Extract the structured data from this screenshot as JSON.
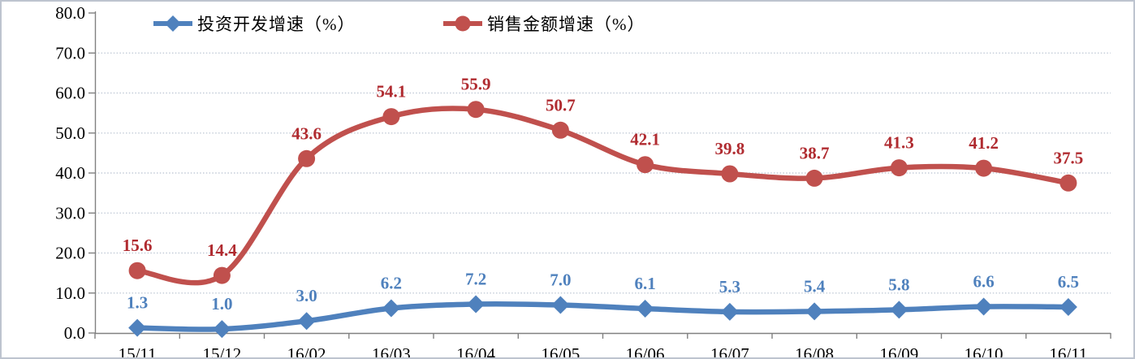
{
  "chart_data": {
    "type": "line",
    "title": "",
    "categories": [
      "15/11",
      "15/12",
      "16/02",
      "16/03",
      "16/04",
      "16/05",
      "16/06",
      "16/07",
      "16/08",
      "16/09",
      "16/10",
      "16/11"
    ],
    "series": [
      {
        "name": "投资开发增速（%）",
        "values": [
          1.3,
          1.0,
          3.0,
          6.2,
          7.2,
          7.0,
          6.1,
          5.3,
          5.4,
          5.8,
          6.6,
          6.5
        ],
        "color": "#4f81bd",
        "label_color": "#4f81bd",
        "marker": "diamond"
      },
      {
        "name": "销售金额增速（%）",
        "values": [
          15.6,
          14.4,
          43.6,
          54.1,
          55.9,
          50.7,
          42.1,
          39.8,
          38.7,
          41.3,
          41.2,
          37.5
        ],
        "color": "#c0504d",
        "label_color": "#b02b30",
        "marker": "circle"
      }
    ],
    "ylim": [
      0,
      80
    ],
    "ytick_step": 10,
    "ytick_labels": [
      "0.0",
      "10.0",
      "20.0",
      "30.0",
      "40.0",
      "50.0",
      "60.0",
      "70.0",
      "80.0"
    ],
    "grid": true,
    "gridline_color": "#c3ccd8",
    "axis_color": "#808080",
    "legend_position": "top"
  }
}
